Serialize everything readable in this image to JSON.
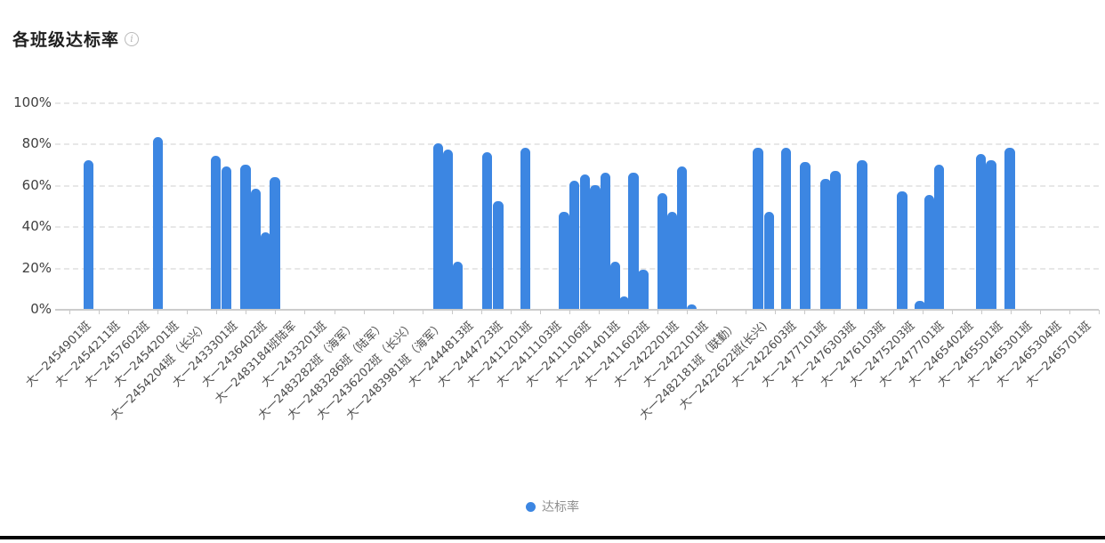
{
  "header": {
    "title": "各班级达标率"
  },
  "chart_data": {
    "type": "bar",
    "title": "各班级达标率",
    "series_name": "达标率",
    "bar_color": "#3C86E2",
    "ylim": [
      0,
      100
    ],
    "y_tick_labels": [
      "100%",
      "80%",
      "60%",
      "40%",
      "20%",
      "0%"
    ],
    "grid": "dashed horizontal gridlines",
    "legend_position": "bottom-center",
    "x_tick_labels": [
      "大一2454901班",
      "大一2454211班",
      "大一2457602班",
      "大一2454201班",
      "大一2454204班（长兴）",
      "大一2433301班",
      "大一2436402班",
      "大一2483184班陆军",
      "大一2433201班",
      "大一2483282班（海军）",
      "大一2483286班（陆军）",
      "大一2436202班（长兴）",
      "大一2483981班（海军）",
      "大一2444813班",
      "大一2444723班",
      "大一2411201班",
      "大一2411103班",
      "大一2411106班",
      "大一2411401班",
      "大一2411602班",
      "大一2422201班",
      "大一2422101班",
      "大一2482181班（联勤）",
      "大一2422622班(长兴)",
      "大一2422603班",
      "大一2477101班",
      "大一2476303班",
      "大一2476103班",
      "大一2475203班",
      "大一2477701班",
      "大一2465402班",
      "大一2465501班",
      "大一2465301班",
      "大一2465304班",
      "大一2465701班"
    ],
    "bars": [
      {
        "x_pct": 1.34,
        "value": 72
      },
      {
        "x_pct": 8.12,
        "value": 83
      },
      {
        "x_pct": 13.74,
        "value": 74
      },
      {
        "x_pct": 14.74,
        "value": 69
      },
      {
        "x_pct": 16.6,
        "value": 70
      },
      {
        "x_pct": 17.63,
        "value": 58
      },
      {
        "x_pct": 18.58,
        "value": 37
      },
      {
        "x_pct": 19.49,
        "value": 64
      },
      {
        "x_pct": 35.35,
        "value": 80
      },
      {
        "x_pct": 36.3,
        "value": 77
      },
      {
        "x_pct": 37.25,
        "value": 23
      },
      {
        "x_pct": 40.1,
        "value": 76
      },
      {
        "x_pct": 41.18,
        "value": 52
      },
      {
        "x_pct": 43.82,
        "value": 78
      },
      {
        "x_pct": 47.54,
        "value": 47
      },
      {
        "x_pct": 48.57,
        "value": 62
      },
      {
        "x_pct": 49.57,
        "value": 65
      },
      {
        "x_pct": 50.6,
        "value": 60
      },
      {
        "x_pct": 51.56,
        "value": 66
      },
      {
        "x_pct": 52.51,
        "value": 23
      },
      {
        "x_pct": 53.41,
        "value": 6
      },
      {
        "x_pct": 54.28,
        "value": 66
      },
      {
        "x_pct": 55.23,
        "value": 19
      },
      {
        "x_pct": 57.09,
        "value": 56
      },
      {
        "x_pct": 58.08,
        "value": 47
      },
      {
        "x_pct": 58.99,
        "value": 69
      },
      {
        "x_pct": 59.98,
        "value": 2
      },
      {
        "x_pct": 66.38,
        "value": 78
      },
      {
        "x_pct": 67.46,
        "value": 47
      },
      {
        "x_pct": 69.14,
        "value": 78
      },
      {
        "x_pct": 71.0,
        "value": 71
      },
      {
        "x_pct": 72.95,
        "value": 63
      },
      {
        "x_pct": 73.94,
        "value": 67
      },
      {
        "x_pct": 76.53,
        "value": 72
      },
      {
        "x_pct": 80.42,
        "value": 57
      },
      {
        "x_pct": 82.15,
        "value": 4
      },
      {
        "x_pct": 83.02,
        "value": 55
      },
      {
        "x_pct": 84.01,
        "value": 70
      },
      {
        "x_pct": 88.07,
        "value": 75
      },
      {
        "x_pct": 89.06,
        "value": 72
      },
      {
        "x_pct": 90.84,
        "value": 78
      }
    ]
  }
}
